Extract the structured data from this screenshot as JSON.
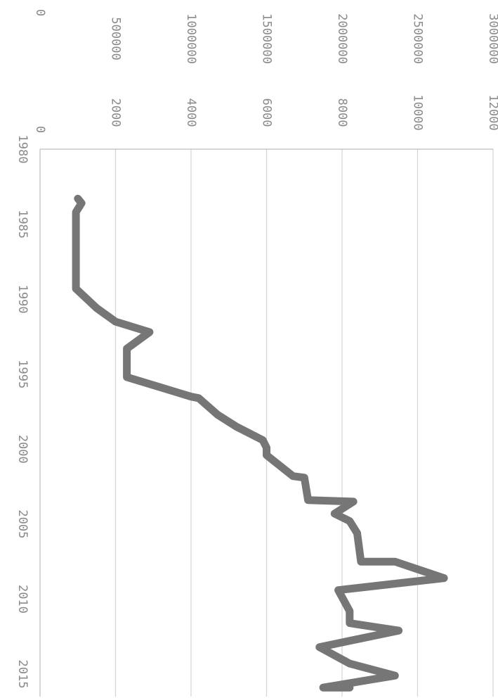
{
  "chart_data": {
    "type": "line",
    "orientation": "rotated-90-clockwise",
    "title": "",
    "xlabel": "",
    "ylabel": "",
    "grid": true,
    "x_ticks": [
      "1980",
      "1985",
      "1990",
      "1995",
      "2000",
      "2005",
      "2010",
      "2015"
    ],
    "xlim": [
      1980,
      2016.5
    ],
    "y_ticks_inner": [
      "0",
      "2000",
      "4000",
      "6000",
      "8000",
      "10000",
      "12000"
    ],
    "ylim_inner": [
      0,
      12000
    ],
    "y_ticks_outer": [
      "0",
      "500000",
      "1000000",
      "1500000",
      "2000000",
      "2500000",
      "3000000"
    ],
    "ylim_outer": [
      0,
      3000000
    ],
    "series": [
      {
        "color": "#767676",
        "points": [
          [
            1983.3,
            1000
          ],
          [
            1983.6,
            1100
          ],
          [
            1984.2,
            950
          ],
          [
            1989.3,
            950
          ],
          [
            1990.6,
            1500
          ],
          [
            1991.5,
            2000
          ],
          [
            1992.2,
            2900
          ],
          [
            1993.3,
            2300
          ],
          [
            1994.0,
            2300
          ],
          [
            1995.2,
            2300
          ],
          [
            1996.5,
            4000
          ],
          [
            1996.6,
            4200
          ],
          [
            1997.7,
            4700
          ],
          [
            1998.5,
            5200
          ],
          [
            1999.4,
            5900
          ],
          [
            1999.9,
            6000
          ],
          [
            2000.4,
            6000
          ],
          [
            2001.8,
            6700
          ],
          [
            2001.9,
            7000
          ],
          [
            2003.4,
            7100
          ],
          [
            2003.5,
            8300
          ],
          [
            2004.3,
            7800
          ],
          [
            2004.8,
            8200
          ],
          [
            2005.6,
            8400
          ],
          [
            2007.5,
            8500
          ],
          [
            2007.5,
            9400
          ],
          [
            2008.6,
            10700
          ],
          [
            2009.4,
            7900
          ],
          [
            2010.8,
            8200
          ],
          [
            2011.6,
            8200
          ],
          [
            2012.1,
            9500
          ],
          [
            2013.2,
            7400
          ],
          [
            2014.3,
            8200
          ],
          [
            2015.1,
            9400
          ],
          [
            2015.9,
            7500
          ],
          [
            2015.9,
            8200
          ]
        ]
      }
    ]
  }
}
